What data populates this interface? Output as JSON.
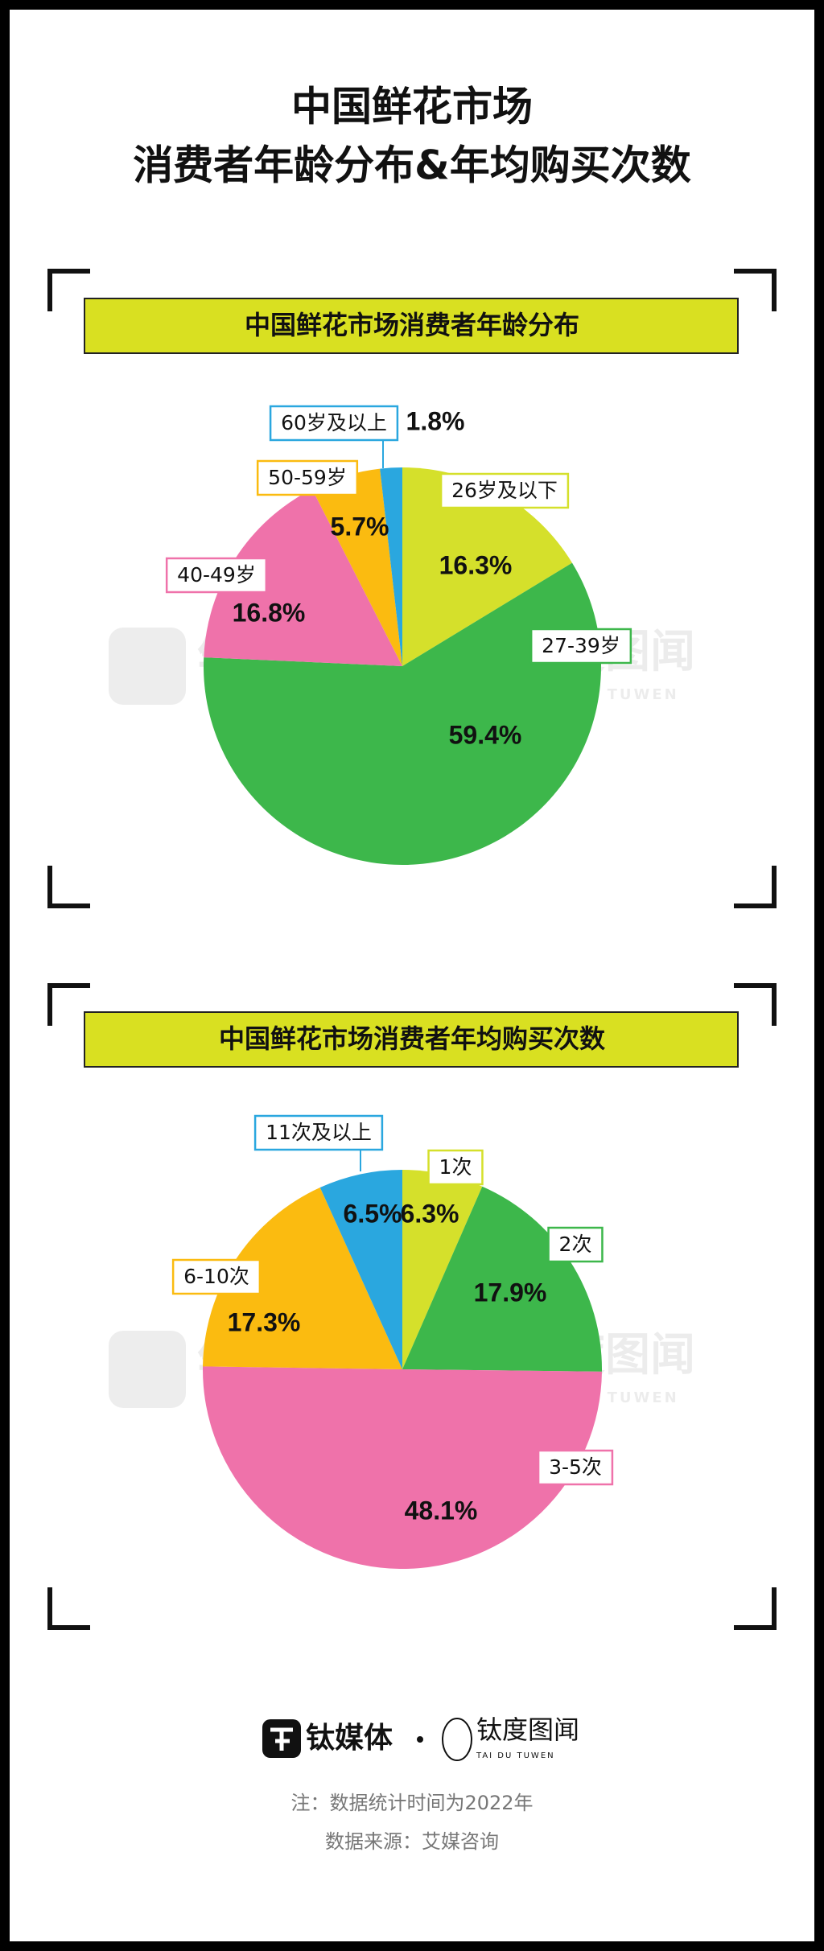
{
  "header": {
    "title": [
      "中国鲜花市场",
      "消费者年龄分布&年均购买次数"
    ]
  },
  "watermark": {
    "brand": "钛媒体",
    "partner": "钛度图闻",
    "partner_en": "TAI DU TUWEN"
  },
  "chart_data": [
    {
      "type": "pie",
      "title": "中国鲜花市场消费者年龄分布",
      "categories": [
        "26岁及以下",
        "27-39岁",
        "40-49岁",
        "50-59岁",
        "60岁及以上"
      ],
      "values": [
        16.3,
        59.4,
        16.8,
        5.7,
        1.8
      ],
      "value_labels": [
        "16.3%",
        "59.4%",
        "16.8%",
        "5.7%",
        "1.8%"
      ],
      "colors": [
        "#d5e02b",
        "#3db74b",
        "#ef72aa",
        "#fbbb10",
        "#2aa7df"
      ]
    },
    {
      "type": "pie",
      "title": "中国鲜花市场消费者年均购买次数",
      "categories": [
        "1次",
        "2次",
        "3-5次",
        "6-10次",
        "11次及以上"
      ],
      "values": [
        6.3,
        17.9,
        48.1,
        17.3,
        6.5
      ],
      "value_labels": [
        "6.3%",
        "17.9%",
        "48.1%",
        "17.3%",
        "6.5%"
      ],
      "colors": [
        "#d5e02b",
        "#3db74b",
        "#ef72aa",
        "#fbbb10",
        "#2aa7df"
      ]
    }
  ],
  "footer": {
    "brand": "钛媒体",
    "partner": "钛度图闻",
    "partner_en": "TAI DU TUWEN",
    "note": "注：数据统计时间为2022年",
    "source": "数据来源：艾媒咨询"
  }
}
